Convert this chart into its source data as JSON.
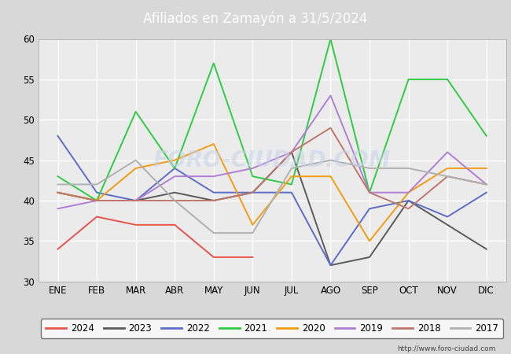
{
  "title": "Afiliados en Zamayón a 31/5/2024",
  "title_bg_color": "#4472c4",
  "title_text_color": "white",
  "ylim": [
    30,
    60
  ],
  "yticks": [
    30,
    35,
    40,
    45,
    50,
    55,
    60
  ],
  "months": [
    "ENE",
    "FEB",
    "MAR",
    "ABR",
    "MAY",
    "JUN",
    "JUL",
    "AGO",
    "SEP",
    "OCT",
    "NOV",
    "DIC"
  ],
  "url": "http://www.foro-ciudad.com",
  "series": {
    "2024": {
      "color": "#e8534a",
      "data": [
        34,
        38,
        37,
        37,
        33,
        33,
        null,
        null,
        null,
        null,
        null,
        null
      ]
    },
    "2023": {
      "color": "#5a5a5a",
      "data": [
        41,
        40,
        40,
        41,
        40,
        41,
        46,
        32,
        33,
        40,
        37,
        34
      ]
    },
    "2022": {
      "color": "#5b6dc8",
      "data": [
        48,
        41,
        40,
        44,
        41,
        41,
        41,
        32,
        39,
        40,
        38,
        41
      ]
    },
    "2021": {
      "color": "#2ecc40",
      "data": [
        43,
        40,
        51,
        44,
        57,
        43,
        42,
        60,
        41,
        55,
        55,
        48
      ]
    },
    "2020": {
      "color": "#f39c12",
      "data": [
        41,
        40,
        44,
        45,
        47,
        37,
        43,
        43,
        35,
        41,
        44,
        44
      ]
    },
    "2019": {
      "color": "#b07fd4",
      "data": [
        39,
        40,
        40,
        43,
        43,
        44,
        46,
        53,
        41,
        41,
        46,
        42
      ]
    },
    "2018": {
      "color": "#c0756a",
      "data": [
        41,
        40,
        40,
        40,
        40,
        41,
        46,
        49,
        41,
        39,
        43,
        42
      ]
    },
    "2017": {
      "color": "#b0b0b0",
      "data": [
        42,
        42,
        45,
        40,
        36,
        36,
        44,
        45,
        44,
        44,
        43,
        42
      ]
    }
  },
  "legend_order": [
    "2024",
    "2023",
    "2022",
    "2021",
    "2020",
    "2019",
    "2018",
    "2017"
  ],
  "background_color": "#d8d8d8",
  "plot_bg_color": "#ebebeb",
  "grid_color": "white",
  "figsize": [
    6.5,
    4.5
  ],
  "dpi": 100
}
